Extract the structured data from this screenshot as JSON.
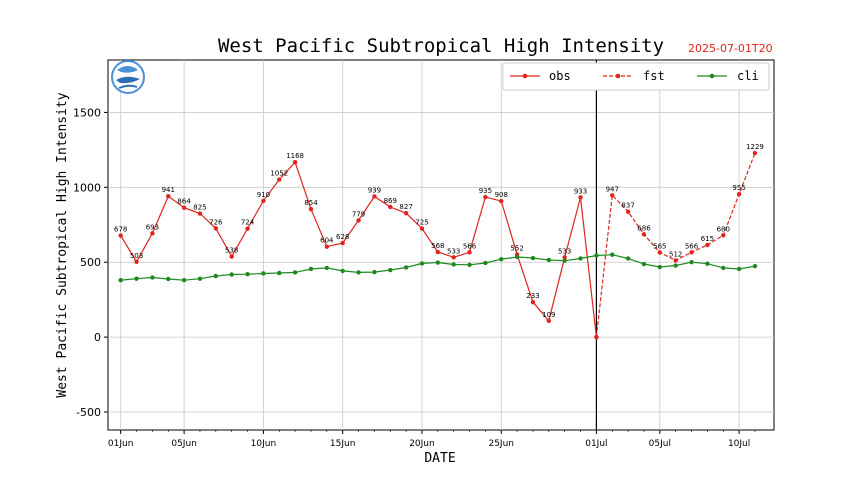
{
  "chart_data": {
    "type": "line",
    "title": "West Pacific Subtropical High Intensity",
    "timestamp": "2025-07-01T20",
    "xlabel": "DATE",
    "ylabel": "West Pacific Subtropical High Intensity",
    "ylim": [
      -620,
      1850
    ],
    "yticks": [
      -500,
      0,
      500,
      1000,
      1500
    ],
    "xlim": [
      -0.8,
      41.2
    ],
    "xticks": [
      {
        "i": 0,
        "label": "01Jun"
      },
      {
        "i": 4,
        "label": "05Jun"
      },
      {
        "i": 9,
        "label": "10Jun"
      },
      {
        "i": 14,
        "label": "15Jun"
      },
      {
        "i": 19,
        "label": "20Jun"
      },
      {
        "i": 24,
        "label": "25Jun"
      },
      {
        "i": 30,
        "label": "01Jul"
      },
      {
        "i": 34,
        "label": "05Jul"
      },
      {
        "i": 39,
        "label": "10Jul"
      }
    ],
    "grid": true,
    "legend_position": "top-right",
    "current_index": 30,
    "colors": {
      "obs": "#e0241b",
      "fst": "#e0241b",
      "cli": "#1d8a1d"
    },
    "series": [
      {
        "name": "obs",
        "style": "solid",
        "start": 0,
        "values": [
          678,
          503,
          693,
          941,
          864,
          825,
          726,
          538,
          724,
          910,
          1052,
          1168,
          854,
          604,
          628,
          779,
          939,
          869,
          827,
          725,
          568,
          533,
          566,
          935,
          908,
          552,
          233,
          109,
          533,
          933,
          0
        ],
        "labels": [
          "678",
          "503",
          "693",
          "941",
          "864",
          "825",
          "726",
          "538",
          "724",
          "910",
          "1052",
          "1168",
          "854",
          "604",
          "628",
          "779",
          "939",
          "869",
          "827",
          "725",
          "568",
          "533",
          "566",
          "935",
          "908",
          "552",
          "233",
          "109",
          "533",
          "933",
          ""
        ]
      },
      {
        "name": "fst",
        "style": "dashed",
        "start": 30,
        "values": [
          0,
          947,
          837,
          686,
          565,
          512,
          566,
          615,
          680,
          955,
          1229
        ],
        "labels": [
          "",
          "947",
          "837",
          "686",
          "565",
          "512",
          "566",
          "615",
          "680",
          "955",
          "1229"
        ]
      },
      {
        "name": "cli",
        "style": "solid",
        "start": 0,
        "values": [
          380,
          390,
          398,
          388,
          380,
          390,
          408,
          418,
          420,
          425,
          428,
          432,
          455,
          462,
          442,
          432,
          434,
          448,
          465,
          492,
          498,
          485,
          483,
          495,
          520,
          535,
          528,
          515,
          510,
          525,
          545,
          550,
          525,
          488,
          468,
          478,
          500,
          490,
          462,
          455,
          474
        ],
        "labels": []
      }
    ]
  }
}
